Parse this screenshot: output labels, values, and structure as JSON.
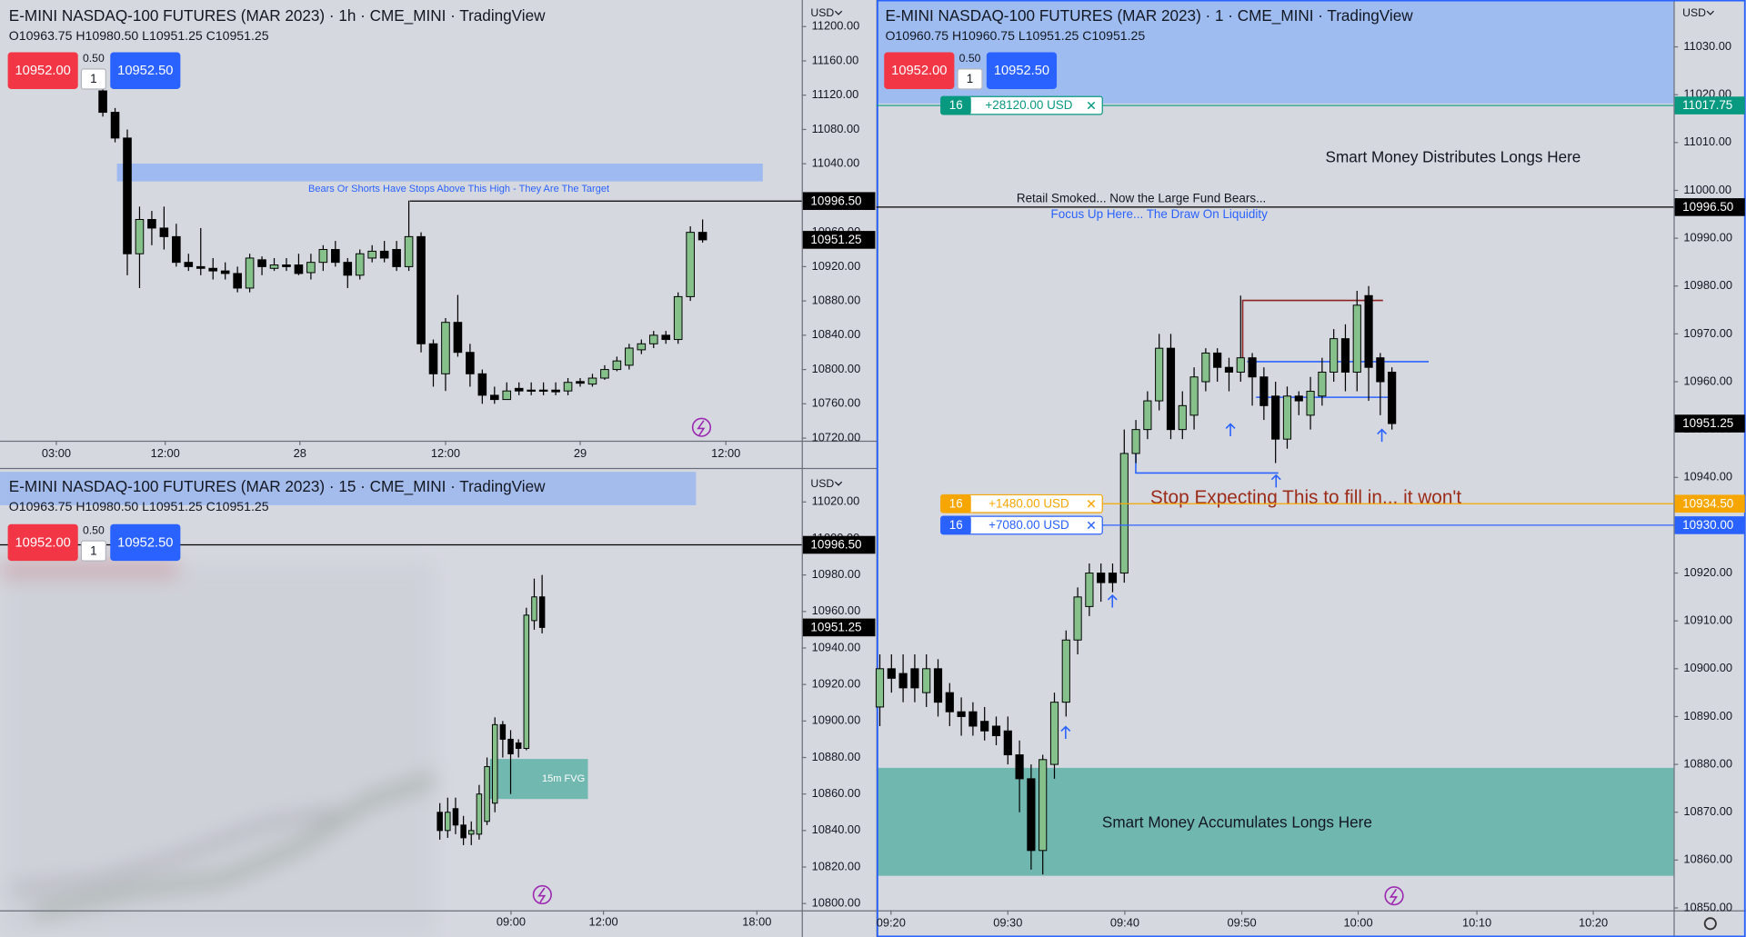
{
  "chart_data": [
    {
      "type": "candlestick",
      "title": "E-MINI NASDAQ-100 FUTURES (MAR 2023) · 1h · CME_MINI · TradingView",
      "ohlc_legend": "O10963.75 H10980.50 L10951.25 C10951.25",
      "currency": "USD",
      "buttons": {
        "sell": {
          "value": 10952,
          "label": "10952.00"
        },
        "spread": {
          "value": 0.5,
          "label": "0.50"
        },
        "qty": 1,
        "buy": {
          "value": 10952.5,
          "label": "10952.50"
        }
      },
      "up_color": "#86c18c",
      "down_color": "#000000",
      "grid": false,
      "xlim": [
        -8.4,
        57.1
      ],
      "xticks": [
        {
          "value": -3.8,
          "label": "03:00"
        },
        {
          "value": 5.1,
          "label": "12:00"
        },
        {
          "value": 16.1,
          "label": "28"
        },
        {
          "value": 28,
          "label": "12:00"
        },
        {
          "value": 39,
          "label": "29"
        },
        {
          "value": 50.9,
          "label": "12:00"
        }
      ],
      "ylim": [
        10717,
        11231
      ],
      "yticks": [
        {
          "value": 10720,
          "label": "10720.00"
        },
        {
          "value": 10760,
          "label": "10760.00"
        },
        {
          "value": 10800,
          "label": "10800.00"
        },
        {
          "value": 10840,
          "label": "10840.00"
        },
        {
          "value": 10880,
          "label": "10880.00"
        },
        {
          "value": 10920,
          "label": "10920.00"
        },
        {
          "value": 10960,
          "label": "10960.00"
        },
        {
          "value": 11000,
          "label": "11000.00"
        },
        {
          "value": 11040,
          "label": "11040.00"
        },
        {
          "value": 11080,
          "label": "11080.00"
        },
        {
          "value": 11120,
          "label": "11120.00"
        },
        {
          "value": 11160,
          "label": "11160.00"
        },
        {
          "value": 11200,
          "label": "11200.00"
        }
      ],
      "open": [
        11125,
        11100,
        11070,
        10935,
        10975,
        10965,
        10955,
        10925,
        10920,
        10918,
        10915,
        10912,
        10895,
        10928,
        10918,
        10922,
        10922,
        10913,
        10925,
        10940,
        10925,
        10910,
        10930,
        10938,
        10940,
        10920,
        10955,
        10830,
        10795,
        10855,
        10820,
        10795,
        10770,
        10765,
        10778,
        10776,
        10776,
        10776,
        10775,
        10786,
        10783,
        10790,
        10800,
        10805,
        10823,
        10830,
        10840,
        10835,
        10885,
        10960
      ],
      "high": [
        11134,
        11105,
        11080,
        10990,
        10985,
        10990,
        10970,
        10935,
        10965,
        10930,
        10925,
        10920,
        10935,
        10932,
        10930,
        10930,
        10935,
        10935,
        10945,
        10950,
        10930,
        10940,
        10945,
        10950,
        10950,
        10997,
        10960,
        10835,
        10860,
        10887,
        10830,
        10800,
        10780,
        10785,
        10785,
        10785,
        10785,
        10785,
        10790,
        10790,
        10795,
        10805,
        10815,
        10830,
        10835,
        10845,
        10845,
        10890,
        10967,
        10975
      ],
      "low": [
        11095,
        11065,
        10910,
        10895,
        10945,
        10940,
        10920,
        10915,
        10910,
        10905,
        10905,
        10890,
        10890,
        10910,
        10915,
        10915,
        10910,
        10905,
        10915,
        10920,
        10895,
        10905,
        10925,
        10925,
        10915,
        10915,
        10820,
        10780,
        10775,
        10815,
        10780,
        10760,
        10760,
        10765,
        10770,
        10770,
        10770,
        10770,
        10770,
        10780,
        10780,
        10788,
        10798,
        10800,
        10818,
        10825,
        10830,
        10830,
        10880,
        10948
      ],
      "close": [
        11100,
        11070,
        10935,
        10975,
        10965,
        10955,
        10925,
        10920,
        10918,
        10915,
        10912,
        10895,
        10930,
        10920,
        10922,
        10920,
        10912,
        10925,
        10940,
        10925,
        10910,
        10935,
        10938,
        10930,
        10920,
        10955,
        10830,
        10795,
        10855,
        10820,
        10795,
        10770,
        10765,
        10775,
        10775,
        10775,
        10775,
        10774,
        10785,
        10784,
        10790,
        10800,
        10810,
        10825,
        10830,
        10840,
        10835,
        10885,
        10960,
        10951.25
      ],
      "price_labels": [
        {
          "value": 10996.5,
          "label": "10996.50"
        },
        {
          "value": 10951.25,
          "label": "10951.25"
        }
      ],
      "annotations": [
        "Bears Or Shorts Have Stops Above This High - They Are The Target"
      ]
    },
    {
      "type": "candlestick",
      "title": "E-MINI NASDAQ-100 FUTURES (MAR 2023) · 15 · CME_MINI · TradingView",
      "ohlc_legend": "O10963.75 H10980.50 L10951.25 C10951.25",
      "currency": "USD",
      "buttons": {
        "sell": {
          "value": 10952,
          "label": "10952.00"
        },
        "spread": {
          "value": 0.5,
          "label": "0.50"
        },
        "qty": 1,
        "buy": {
          "value": 10952.5,
          "label": "10952.50"
        }
      },
      "up_color": "#86c18c",
      "down_color": "#000000",
      "grid": false,
      "xlim": [
        -55.9,
        46.0
      ],
      "xticks": [
        {
          "value": 9.05,
          "label": "09:00"
        },
        {
          "value": 20.8,
          "label": "12:00"
        },
        {
          "value": 40.3,
          "label": "18:00"
        }
      ],
      "ylim": [
        10796.3,
        11036.5
      ],
      "yticks": [
        {
          "value": 10800,
          "label": "10800.00"
        },
        {
          "value": 10820,
          "label": "10820.00"
        },
        {
          "value": 10840,
          "label": "10840.00"
        },
        {
          "value": 10860,
          "label": "10860.00"
        },
        {
          "value": 10880,
          "label": "10880.00"
        },
        {
          "value": 10900,
          "label": "10900.00"
        },
        {
          "value": 10920,
          "label": "10920.00"
        },
        {
          "value": 10940,
          "label": "10940.00"
        },
        {
          "value": 10960,
          "label": "10960.00"
        },
        {
          "value": 10980,
          "label": "10980.00"
        },
        {
          "value": 11000,
          "label": "11000.00"
        },
        {
          "value": 11020,
          "label": "11020.00"
        }
      ],
      "open": [
        10850,
        10840,
        10852,
        10843,
        10838,
        10838,
        10845,
        10855,
        10898,
        10890,
        10888,
        10885,
        10955,
        10968
      ],
      "high": [
        10855,
        10858,
        10858,
        10848,
        10845,
        10865,
        10880,
        10902,
        10900,
        10895,
        10890,
        10962,
        10978,
        10980
      ],
      "low": [
        10835,
        10836,
        10838,
        10832,
        10832,
        10835,
        10843,
        10850,
        10880,
        10860,
        10880,
        10884,
        10950,
        10948
      ],
      "close": [
        10840,
        10850,
        10843,
        10836,
        10840,
        10860,
        10875,
        10898,
        10890,
        10882,
        10885,
        10958,
        10968,
        10951.25
      ],
      "price_labels": [
        {
          "value": 10996.5,
          "label": "10996.50"
        },
        {
          "value": 10951.25,
          "label": "10951.25"
        }
      ],
      "annotations": [
        "15m FVG"
      ]
    },
    {
      "type": "candlestick",
      "title": "E-MINI NASDAQ-100 FUTURES (MAR 2023) · 1 · CME_MINI · TradingView",
      "ohlc_legend": "O10960.75 H10960.75 L10951.25 C10951.25",
      "currency": "USD",
      "buttons": {
        "sell": {
          "value": 10952,
          "label": "10952.00"
        },
        "spread": {
          "value": 0.5,
          "label": "0.50"
        },
        "qty": 1,
        "buy": {
          "value": 10952.5,
          "label": "10952.50"
        }
      },
      "up_color": "#86c18c",
      "down_color": "#000000",
      "grid": false,
      "xlim": [
        -0.3,
        68.2
      ],
      "xticks": [
        {
          "value": 0.96,
          "label": "09:20"
        },
        {
          "value": 11,
          "label": "09:30"
        },
        {
          "value": 21.05,
          "label": "09:40"
        },
        {
          "value": 31.1,
          "label": "09:50"
        },
        {
          "value": 41.1,
          "label": "10:00"
        },
        {
          "value": 51.3,
          "label": "10:10"
        },
        {
          "value": 61.3,
          "label": "10:20"
        }
      ],
      "ylim": [
        10849.5,
        11039.8
      ],
      "yticks": [
        {
          "value": 10850,
          "label": "10850.00"
        },
        {
          "value": 10860,
          "label": "10860.00"
        },
        {
          "value": 10870,
          "label": "10870.00"
        },
        {
          "value": 10880,
          "label": "10880.00"
        },
        {
          "value": 10890,
          "label": "10890.00"
        },
        {
          "value": 10900,
          "label": "10900.00"
        },
        {
          "value": 10910,
          "label": "10910.00"
        },
        {
          "value": 10920,
          "label": "10920.00"
        },
        {
          "value": 10930,
          "label": "10930.00"
        },
        {
          "value": 10940,
          "label": "10940.00"
        },
        {
          "value": 10950,
          "label": "10950.00"
        },
        {
          "value": 10960,
          "label": "10960.00"
        },
        {
          "value": 10970,
          "label": "10970.00"
        },
        {
          "value": 10980,
          "label": "10980.00"
        },
        {
          "value": 10990,
          "label": "10990.00"
        },
        {
          "value": 11000,
          "label": "11000.00"
        },
        {
          "value": 11010,
          "label": "11010.00"
        },
        {
          "value": 11020,
          "label": "11020.00"
        },
        {
          "value": 11030,
          "label": "11030.00"
        }
      ],
      "open": [
        10892,
        10900,
        10899,
        10900,
        10895,
        10900,
        10895,
        10891,
        10891,
        10889,
        10888,
        10887,
        10882,
        10877,
        10862,
        10880,
        10893,
        10906,
        10913,
        10920,
        10920,
        10920,
        10945,
        10950,
        10956,
        10967,
        10950,
        10953,
        10960,
        10966,
        10963,
        10962,
        10965,
        10961,
        10957,
        10948,
        10957,
        10953,
        10957,
        10962,
        10969,
        10962,
        10978,
        10965,
        10962
      ],
      "high": [
        10903,
        10903,
        10903,
        10903,
        10903,
        10902,
        10897,
        10894,
        10893,
        10892,
        10890,
        10890,
        10885,
        10880,
        10882,
        10895,
        10908,
        10917,
        10922,
        10922,
        10922,
        10950,
        10952,
        10958,
        10970,
        10970,
        10958,
        10963,
        10967,
        10967,
        10965,
        10978,
        10966,
        10963,
        10960,
        10959,
        10958,
        10961,
        10965,
        10971,
        10972,
        10979,
        10980,
        10966,
        10963
      ],
      "low": [
        10888,
        10895,
        10893,
        10893,
        10892,
        10890,
        10888,
        10886,
        10886,
        10885,
        10884,
        10880,
        10870,
        10858,
        10857,
        10877,
        10890,
        10903,
        10911,
        10914,
        10916,
        10918,
        10943,
        10948,
        10954,
        10948,
        10948,
        10950,
        10958,
        10960,
        10958,
        10960,
        10955,
        10952,
        10943,
        10946,
        10953,
        10950,
        10955,
        10960,
        10958,
        10958,
        10956,
        10953,
        10950
      ],
      "close": [
        10900,
        10898,
        10896,
        10896,
        10900,
        10893,
        10891,
        10890,
        10888,
        10887,
        10886,
        10882,
        10877,
        10862,
        10881,
        10893,
        10906,
        10915,
        10920,
        10918,
        10918,
        10945,
        10950,
        10956,
        10967,
        10950,
        10955,
        10961,
        10966,
        10963,
        10962,
        10965,
        10961,
        10955,
        10948,
        10957,
        10956,
        10958,
        10962,
        10969,
        10962,
        10976,
        10963,
        10960,
        10951.25
      ],
      "price_labels": [
        {
          "value": 10996.5,
          "label": "10996.50"
        },
        {
          "value": 10951.25,
          "label": "10951.25"
        }
      ],
      "orders": [
        {
          "qty": 16,
          "pnl": "+28120.00 USD",
          "price": {
            "value": 11017.75,
            "label": "11017.75"
          },
          "color": "#089981"
        },
        {
          "qty": 16,
          "pnl": "+1480.00 USD",
          "price": {
            "value": 10934.5,
            "label": "10934.50"
          },
          "color": "#f7a600"
        },
        {
          "qty": 16,
          "pnl": "+7080.00 USD",
          "price": {
            "value": 10930,
            "label": "10930.00"
          },
          "color": "#2962ff"
        }
      ],
      "annotations": [
        "Smart Money Distributes Longs Here",
        "Retail Smoked... Now the Large Fund Bears...",
        "Focus Up Here... The Draw On Liquidity",
        "Stop Expecting This to fill in... it won't",
        "Smart Money Accumulates Longs Here"
      ]
    }
  ]
}
